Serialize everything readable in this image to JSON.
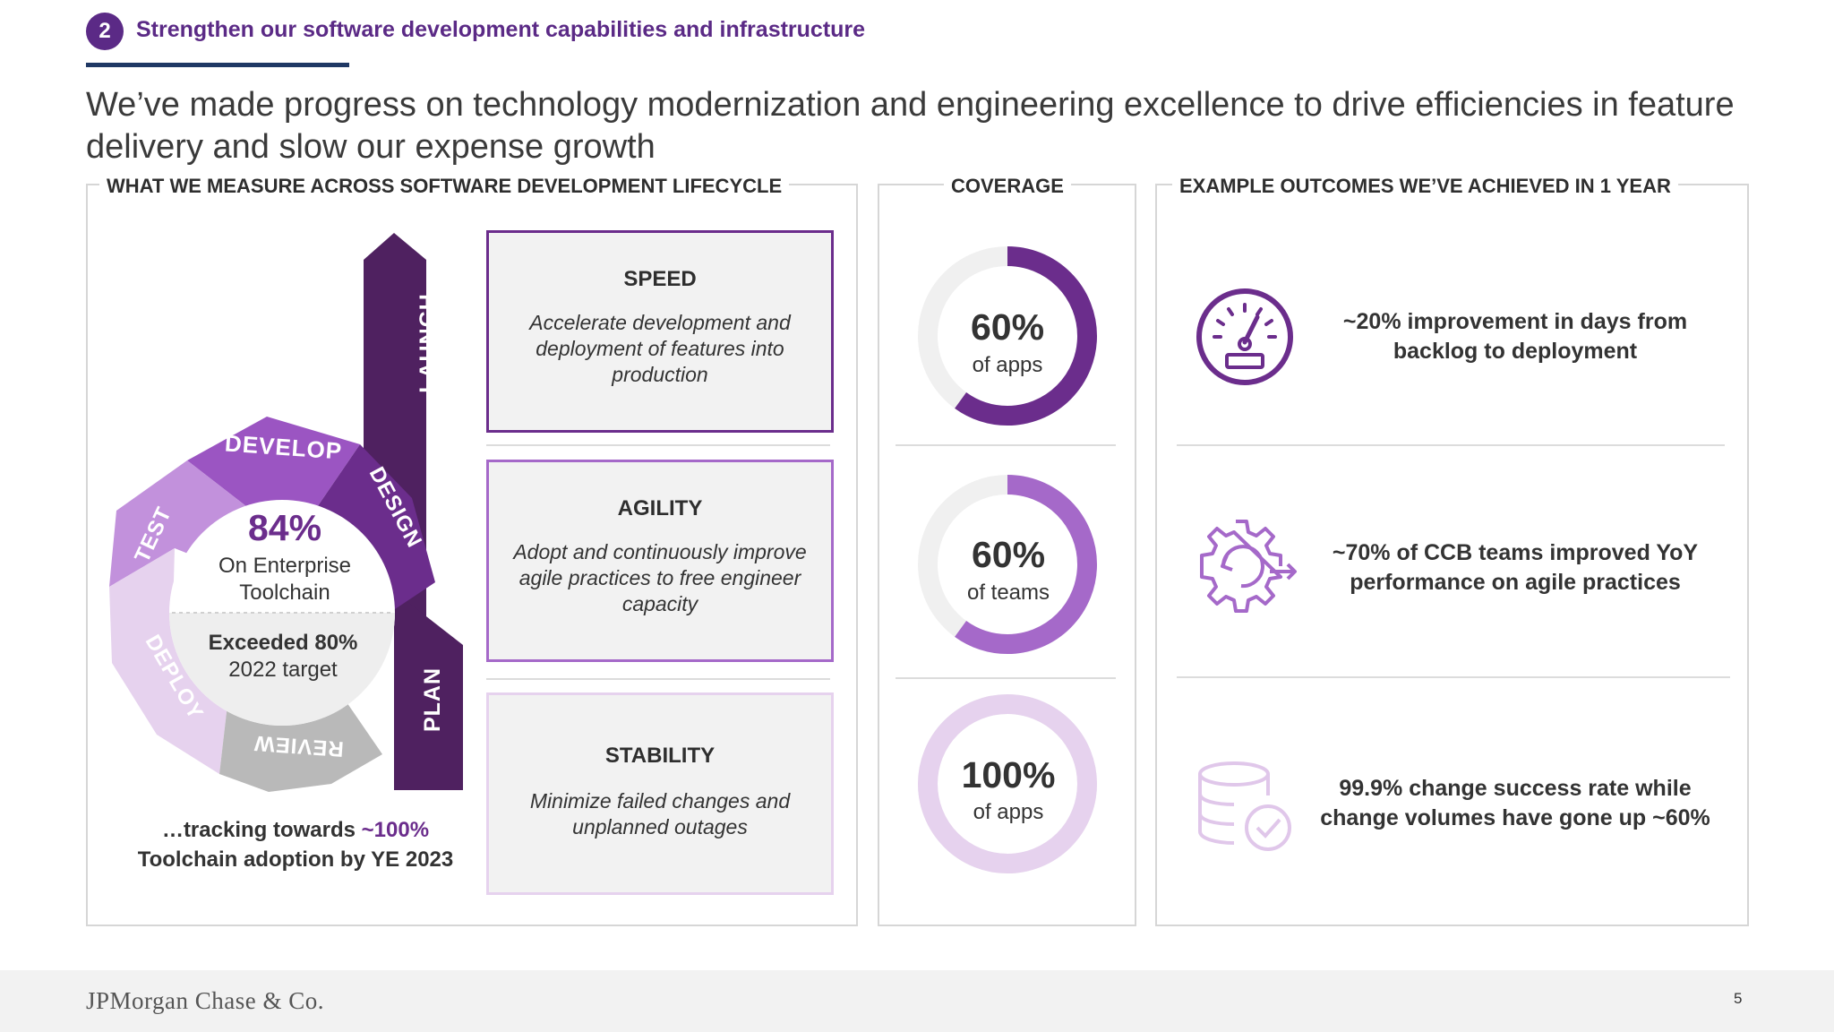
{
  "header": {
    "badge_number": "2",
    "section_title": "Strengthen our software development capabilities and infrastructure",
    "headline": "We’ve made progress on technology modernization and engineering excellence to drive efficiencies in feature delivery and slow our expense growth"
  },
  "measure_panel": {
    "label": "WHAT WE MEASURE ACROSS SOFTWARE DEVELOPMENT LIFECYCLE",
    "wheel": {
      "segments": [
        "DEVELOP",
        "DESIGN",
        "TEST",
        "DEPLOY",
        "REVIEW"
      ],
      "center_value": "84%",
      "center_line1": "On Enterprise",
      "center_line2": "Toolchain",
      "lower_line1": "Exceeded 80%",
      "lower_line2": "2022 target"
    },
    "arrows": {
      "top": "LAUNCH",
      "bottom": "PLAN"
    },
    "tracking_line1_prefix": "…tracking towards ",
    "tracking_line1_highlight": "~100%",
    "tracking_line2": "Toolchain adoption by YE 2023",
    "cards": [
      {
        "title": "SPEED",
        "desc_lines": [
          "Accelerate development and",
          "deployment of features into",
          "production"
        ]
      },
      {
        "title": "AGILITY",
        "desc_lines": [
          "Adopt and continuously improve",
          "agile practices to free engineer",
          "capacity"
        ]
      },
      {
        "title": "STABILITY",
        "desc_lines": [
          "Minimize failed changes and",
          "unplanned outages"
        ]
      }
    ]
  },
  "coverage_panel": {
    "label": "COVERAGE",
    "metrics": [
      {
        "value": "60%",
        "label": "of apps",
        "fraction": 0.6,
        "color": "#6b2d8c"
      },
      {
        "value": "60%",
        "label": "of teams",
        "fraction": 0.6,
        "color": "#a569c9"
      },
      {
        "value": "100%",
        "label": "of apps",
        "fraction": 1.0,
        "color": "#e6d2ee"
      }
    ]
  },
  "outcomes_panel": {
    "label": "EXAMPLE OUTCOMES WE’VE ACHIEVED IN 1 YEAR",
    "items": [
      {
        "icon": "speedometer-icon",
        "lines": [
          "~20% improvement in days from",
          "backlog to deployment"
        ]
      },
      {
        "icon": "gear-cycle-icon",
        "lines": [
          "~70% of CCB teams improved YoY",
          "performance on agile practices"
        ]
      },
      {
        "icon": "database-check-icon",
        "lines": [
          "99.9% change success rate while",
          "change volumes have gone up ~60%"
        ]
      }
    ]
  },
  "footer": {
    "logo": "JPMorgan Chase & Co.",
    "page_number": "5"
  },
  "colors": {
    "brand_purple": "#5b2a86",
    "dark_purple": "#4f2160",
    "navy": "#1f3864"
  }
}
